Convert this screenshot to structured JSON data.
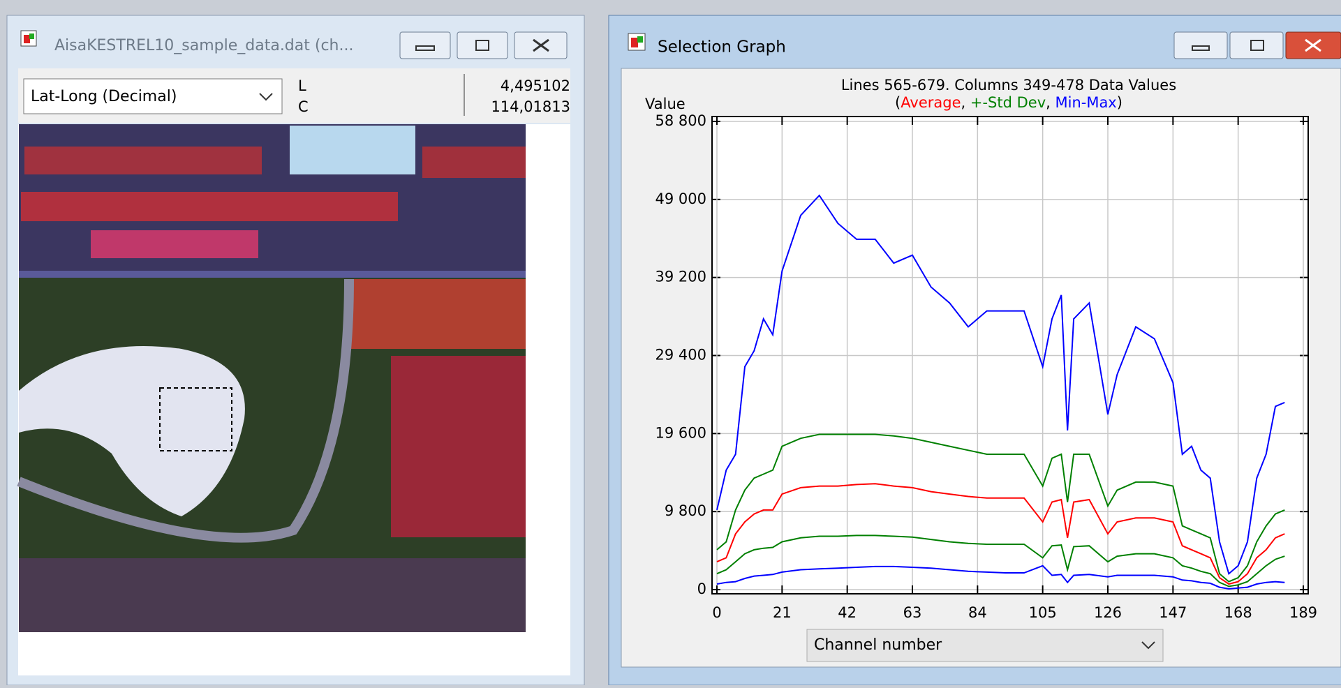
{
  "left_window": {
    "title": "AisaKESTREL10_sample_data.dat (ch...",
    "coord_system": "Lat-Long (Decimal)",
    "row_labels": [
      "L",
      "C"
    ],
    "row_values": [
      "4,495102",
      "114,01813"
    ]
  },
  "graph_window": {
    "title": "Selection Graph",
    "x_selector": "Channel number"
  },
  "chart_data": {
    "type": "line",
    "title": "Lines 565-679. Columns 349-478 Data Values",
    "legend_open": "(",
    "legend_separator": ", ",
    "legend_close": ")",
    "y_label": "Value",
    "grid": true,
    "xlim": [
      0,
      189
    ],
    "xticks": [
      0,
      21,
      42,
      63,
      84,
      105,
      126,
      147,
      168,
      189
    ],
    "ylim": [
      0,
      58800
    ],
    "yticks": [
      0,
      {
        "value": 9800,
        "label": "9 800"
      },
      {
        "value": 19600,
        "label": "19 600"
      },
      {
        "value": 29400,
        "label": "29 400"
      },
      {
        "value": 39200,
        "label": "39 200"
      },
      {
        "value": 49000,
        "label": "49 000"
      },
      {
        "value": 58800,
        "label": "58 800"
      }
    ],
    "x": [
      0,
      3,
      6,
      9,
      12,
      15,
      18,
      21,
      27,
      33,
      39,
      45,
      51,
      57,
      63,
      69,
      75,
      81,
      87,
      93,
      99,
      105,
      108,
      111,
      113,
      115,
      120,
      126,
      129,
      135,
      141,
      147,
      150,
      153,
      156,
      159,
      162,
      165,
      168,
      171,
      174,
      177,
      180,
      183
    ],
    "series": [
      {
        "name": "Average",
        "color": "#ff0000",
        "values": [
          3500,
          4000,
          7000,
          8500,
          9500,
          10000,
          10000,
          12000,
          12800,
          13000,
          13000,
          13200,
          13300,
          13000,
          12800,
          12300,
          12000,
          11700,
          11500,
          11500,
          11500,
          8500,
          11000,
          11300,
          6500,
          11000,
          11300,
          7000,
          8500,
          9000,
          9000,
          8500,
          5500,
          5000,
          4500,
          4000,
          1500,
          700,
          1000,
          2000,
          4000,
          5000,
          6500,
          7000
        ]
      },
      {
        "name": "+-Std Dev",
        "color": "#008000",
        "high": [
          5000,
          6000,
          10000,
          12500,
          14000,
          14500,
          15000,
          18000,
          19000,
          19500,
          19500,
          19500,
          19500,
          19300,
          19000,
          18500,
          18000,
          17500,
          17000,
          17000,
          17000,
          13000,
          16500,
          17000,
          11000,
          17000,
          17000,
          10500,
          12500,
          13500,
          13500,
          13000,
          8000,
          7500,
          7000,
          6500,
          2000,
          1000,
          1500,
          3000,
          6000,
          8000,
          9500,
          10000
        ],
        "low": [
          2000,
          2500,
          3500,
          4500,
          5000,
          5200,
          5300,
          6000,
          6500,
          6700,
          6700,
          6800,
          6800,
          6700,
          6600,
          6300,
          6000,
          5800,
          5700,
          5700,
          5700,
          4000,
          5500,
          5600,
          2500,
          5400,
          5500,
          3500,
          4200,
          4500,
          4500,
          4000,
          3000,
          2700,
          2300,
          2000,
          900,
          400,
          600,
          1000,
          2000,
          3000,
          3800,
          4200
        ]
      },
      {
        "name": "Min-Max",
        "color": "#0000ff",
        "high": [
          10000,
          15000,
          17000,
          28000,
          30000,
          34000,
          32000,
          40000,
          47000,
          49500,
          46000,
          44000,
          44000,
          41000,
          42000,
          38000,
          36000,
          33000,
          35000,
          35000,
          35000,
          28000,
          34000,
          37000,
          20000,
          34000,
          36000,
          22000,
          27000,
          33000,
          31500,
          26000,
          17000,
          18000,
          15000,
          14000,
          6000,
          2000,
          3000,
          6000,
          14000,
          17000,
          23000,
          23500
        ],
        "low": [
          700,
          900,
          1000,
          1400,
          1700,
          1800,
          1900,
          2200,
          2500,
          2600,
          2700,
          2800,
          2900,
          2900,
          2800,
          2700,
          2500,
          2300,
          2200,
          2100,
          2100,
          3000,
          1800,
          1900,
          900,
          1800,
          1900,
          1600,
          1800,
          1800,
          1800,
          1600,
          1200,
          1100,
          900,
          800,
          300,
          100,
          200,
          300,
          700,
          900,
          1000,
          900
        ]
      }
    ]
  }
}
